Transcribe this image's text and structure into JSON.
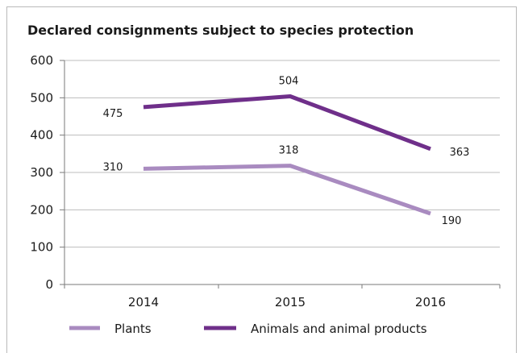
{
  "chart_data": {
    "type": "line",
    "title": "Declared consignments subject to species protection",
    "xlabel": "",
    "ylabel": "",
    "categories": [
      "2014",
      "2015",
      "2016"
    ],
    "ylim": [
      0,
      600
    ],
    "yticks": [
      0,
      100,
      200,
      300,
      400,
      500,
      600
    ],
    "grid": true,
    "legend_position": "bottom",
    "series": [
      {
        "name": "Plants",
        "values": [
          310,
          318,
          190
        ],
        "color": "#a98bc0"
      },
      {
        "name": "Animals and animal products",
        "values": [
          475,
          504,
          363
        ],
        "color": "#6f2f8a"
      }
    ]
  }
}
